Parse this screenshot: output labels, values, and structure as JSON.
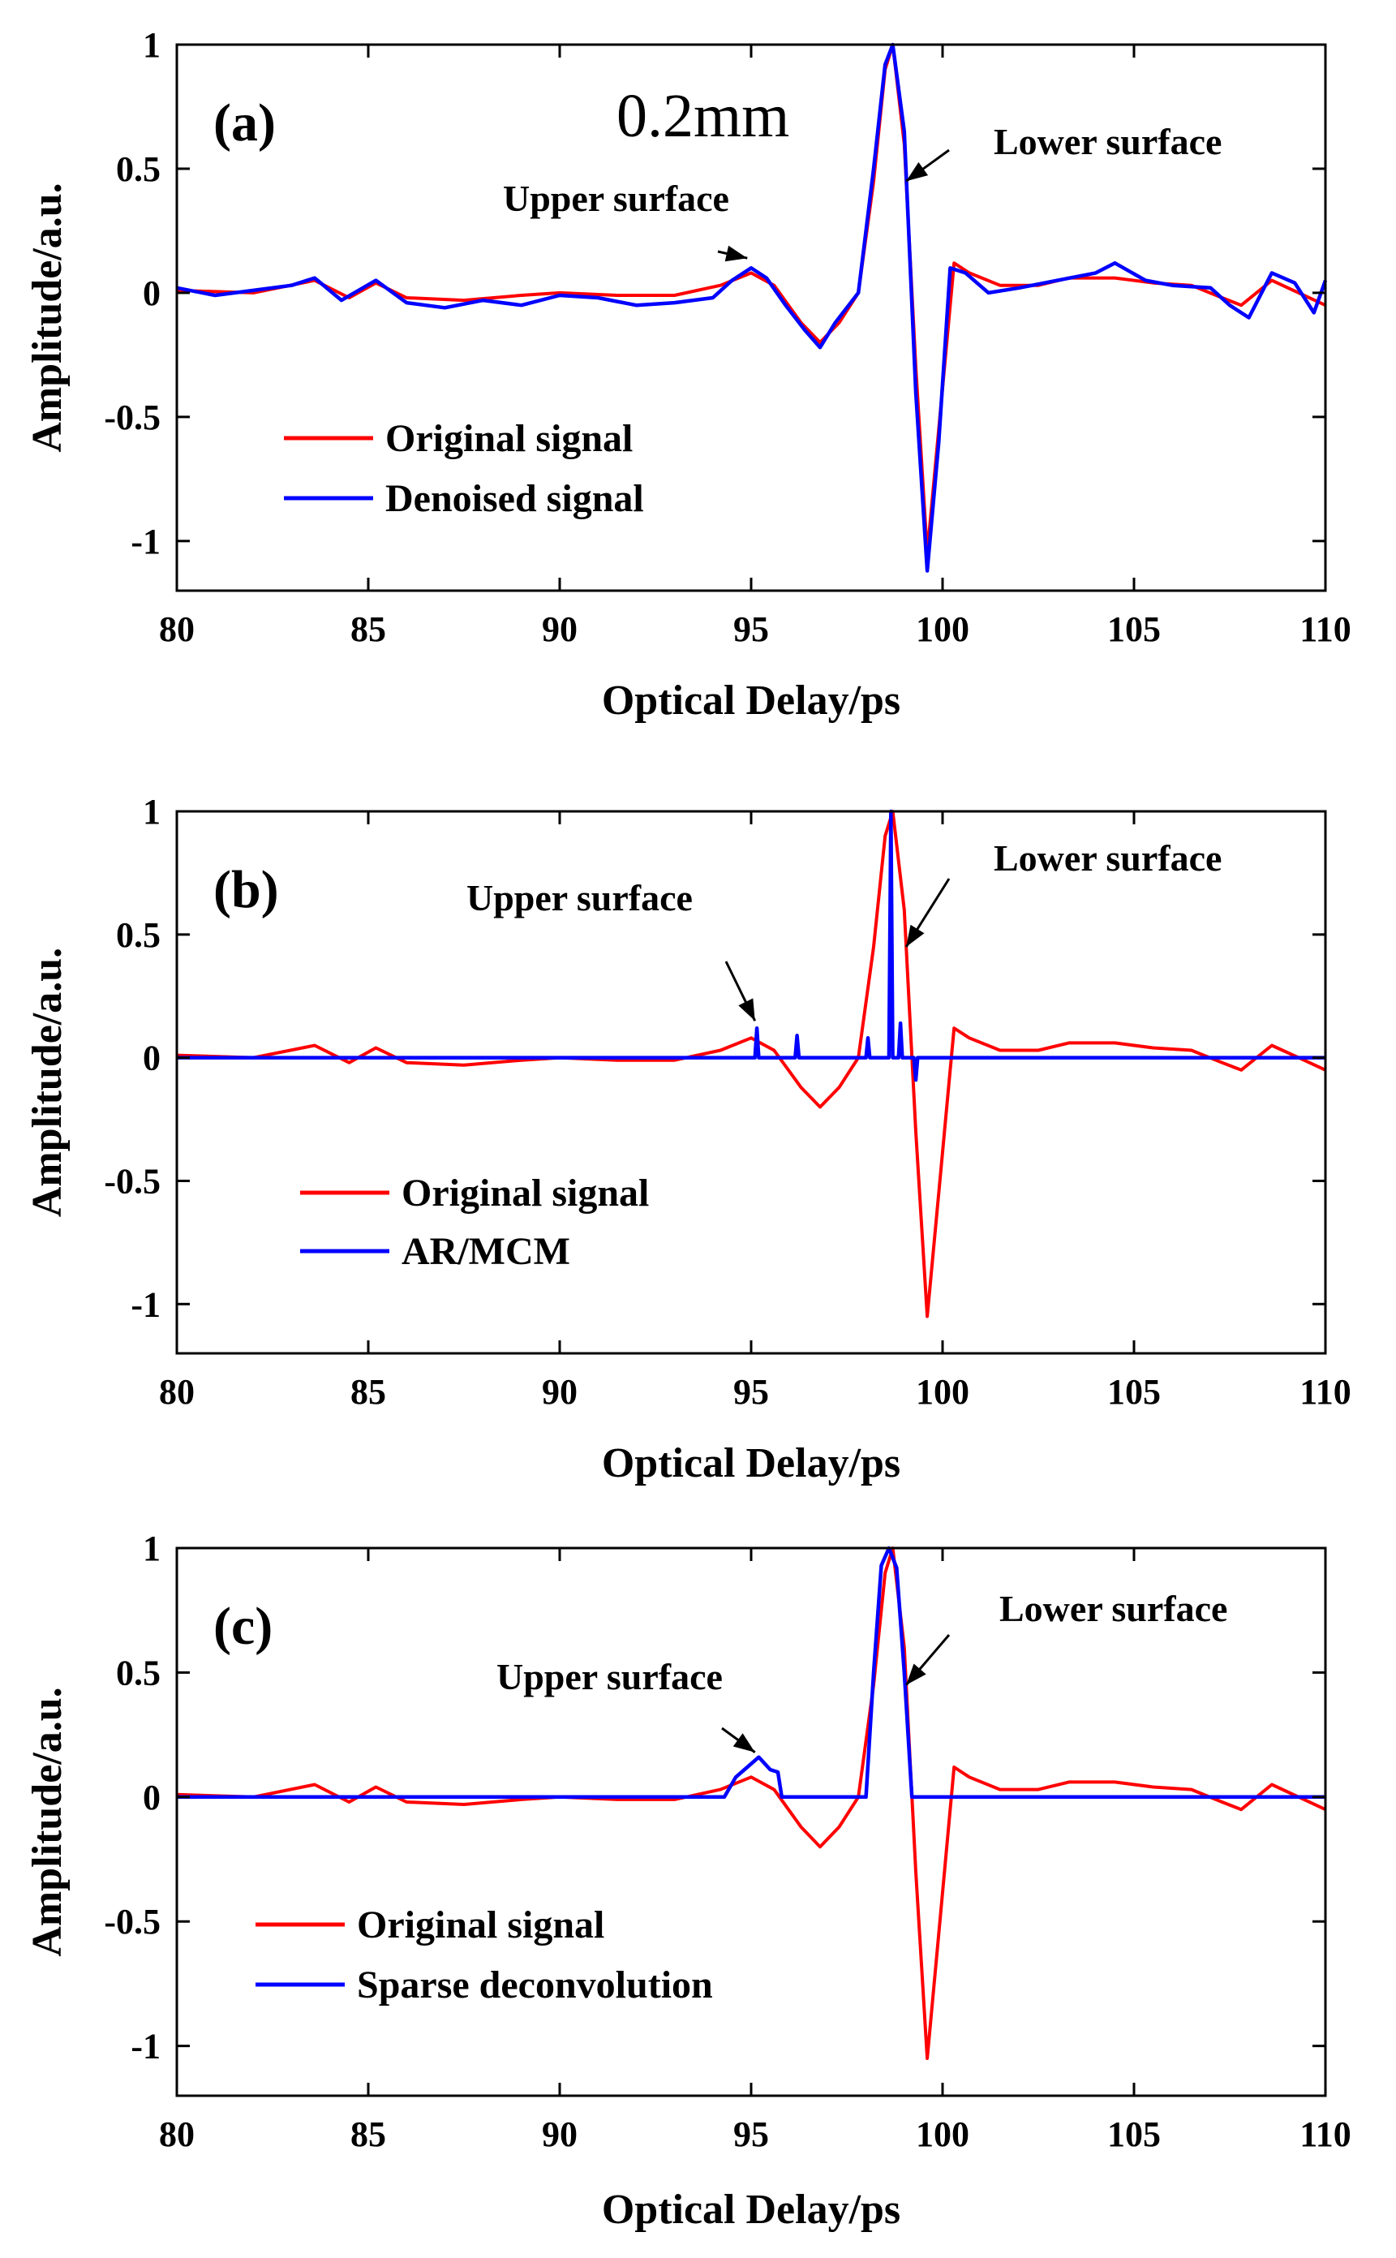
{
  "figure": {
    "thickness_label": "0.2mm"
  },
  "chart_data": [
    {
      "type": "line",
      "panel_label": "(a)",
      "xlabel": "Optical Delay/ps",
      "ylabel": "Amplitude/a.u.",
      "xlim": [
        80,
        110
      ],
      "ylim": [
        -1.2,
        1
      ],
      "xticks": [
        "80",
        "85",
        "90",
        "95",
        "100",
        "105",
        "110"
      ],
      "yticks": [
        "1",
        "0.5",
        "0",
        "-0.5",
        "-1"
      ],
      "annotations": {
        "upper": "Upper surface",
        "lower": "Lower surface"
      },
      "series": [
        {
          "name": "Original signal",
          "color": "#ff0000",
          "x": [
            80,
            82,
            83.6,
            84.5,
            85.2,
            86,
            87.5,
            89,
            90,
            91.5,
            93,
            94.2,
            95,
            95.6,
            96.3,
            96.8,
            97.3,
            97.8,
            98.2,
            98.5,
            98.7,
            99,
            99.3,
            99.6,
            99.9,
            100.3,
            100.7,
            101.5,
            102.5,
            103.3,
            104.5,
            105.5,
            106.5,
            107.3,
            107.8,
            108.6,
            109.3,
            110
          ],
          "y": [
            0.01,
            0.0,
            0.05,
            -0.02,
            0.04,
            -0.02,
            -0.03,
            -0.01,
            0.0,
            -0.01,
            -0.01,
            0.03,
            0.08,
            0.03,
            -0.12,
            -0.2,
            -0.12,
            0.0,
            0.45,
            0.9,
            1.0,
            0.6,
            -0.3,
            -1.05,
            -0.55,
            0.12,
            0.08,
            0.03,
            0.03,
            0.06,
            0.06,
            0.04,
            0.03,
            -0.02,
            -0.05,
            0.05,
            0.0,
            -0.05
          ]
        },
        {
          "name": "Denoised signal",
          "color": "#0000ff",
          "x": [
            80,
            81,
            82,
            83,
            83.6,
            84.3,
            85.2,
            86,
            87,
            88,
            89,
            90,
            91,
            92,
            93,
            94,
            94.5,
            95,
            95.4,
            95.9,
            96.4,
            96.8,
            97.2,
            97.8,
            98.2,
            98.5,
            98.7,
            99,
            99.3,
            99.6,
            99.9,
            100.2,
            100.6,
            101.2,
            102,
            103,
            104,
            104.5,
            105.3,
            106,
            107,
            107.5,
            108,
            108.6,
            109.2,
            109.7,
            110
          ],
          "y": [
            0.02,
            -0.01,
            0.01,
            0.03,
            0.06,
            -0.03,
            0.05,
            -0.04,
            -0.06,
            -0.03,
            -0.05,
            -0.01,
            -0.02,
            -0.05,
            -0.04,
            -0.02,
            0.05,
            0.1,
            0.06,
            -0.05,
            -0.15,
            -0.22,
            -0.12,
            0.0,
            0.5,
            0.92,
            1.0,
            0.65,
            -0.4,
            -1.12,
            -0.6,
            0.1,
            0.08,
            0.0,
            0.02,
            0.05,
            0.08,
            0.12,
            0.05,
            0.03,
            0.02,
            -0.05,
            -0.1,
            0.08,
            0.04,
            -0.08,
            0.05
          ]
        }
      ]
    },
    {
      "type": "line",
      "panel_label": "(b)",
      "xlabel": "Optical Delay/ps",
      "ylabel": "Amplitude/a.u.",
      "xlim": [
        80,
        110
      ],
      "ylim": [
        -1.2,
        1
      ],
      "xticks": [
        "80",
        "85",
        "90",
        "95",
        "100",
        "105",
        "110"
      ],
      "yticks": [
        "1",
        "0.5",
        "0",
        "-0.5",
        "-1"
      ],
      "annotations": {
        "upper": "Upper surface",
        "lower": "Lower surface"
      },
      "series": [
        {
          "name": "Original signal",
          "color": "#ff0000",
          "x": [
            80,
            82,
            83.6,
            84.5,
            85.2,
            86,
            87.5,
            89,
            90,
            91.5,
            93,
            94.2,
            95,
            95.6,
            96.3,
            96.8,
            97.3,
            97.8,
            98.2,
            98.5,
            98.7,
            99,
            99.3,
            99.6,
            99.9,
            100.3,
            100.7,
            101.5,
            102.5,
            103.3,
            104.5,
            105.5,
            106.5,
            107.3,
            107.8,
            108.6,
            109.3,
            110
          ],
          "y": [
            0.01,
            0.0,
            0.05,
            -0.02,
            0.04,
            -0.02,
            -0.03,
            -0.01,
            0.0,
            -0.01,
            -0.01,
            0.03,
            0.08,
            0.03,
            -0.12,
            -0.2,
            -0.12,
            0.0,
            0.45,
            0.9,
            1.0,
            0.6,
            -0.3,
            -1.05,
            -0.55,
            0.12,
            0.08,
            0.03,
            0.03,
            0.06,
            0.06,
            0.04,
            0.03,
            -0.02,
            -0.05,
            0.05,
            0.0,
            -0.05
          ]
        },
        {
          "name": "AR/MCM",
          "color": "#0000ff",
          "x": [
            80,
            95.1,
            95.15,
            95.2,
            96.15,
            96.2,
            96.25,
            98.0,
            98.05,
            98.1,
            98.6,
            98.65,
            98.7,
            98.85,
            98.9,
            98.95,
            99.25,
            99.3,
            99.35,
            110
          ],
          "y": [
            0,
            0,
            0.12,
            0,
            0,
            0.09,
            0,
            0,
            0.08,
            0,
            0,
            1.0,
            0,
            0,
            0.14,
            0,
            0,
            -0.09,
            0,
            0
          ]
        }
      ]
    },
    {
      "type": "line",
      "panel_label": "(c)",
      "xlabel": "Optical Delay/ps",
      "ylabel": "Amplitude/a.u.",
      "xlim": [
        80,
        110
      ],
      "ylim": [
        -1.2,
        1
      ],
      "xticks": [
        "80",
        "85",
        "90",
        "95",
        "100",
        "105",
        "110"
      ],
      "yticks": [
        "1",
        "0.5",
        "0",
        "-0.5",
        "-1"
      ],
      "annotations": {
        "upper": "Upper surface",
        "lower": "Lower surface"
      },
      "series": [
        {
          "name": "Original signal",
          "color": "#ff0000",
          "x": [
            80,
            82,
            83.6,
            84.5,
            85.2,
            86,
            87.5,
            89,
            90,
            91.5,
            93,
            94.2,
            95,
            95.6,
            96.3,
            96.8,
            97.3,
            97.8,
            98.2,
            98.5,
            98.7,
            99,
            99.3,
            99.6,
            99.9,
            100.3,
            100.7,
            101.5,
            102.5,
            103.3,
            104.5,
            105.5,
            106.5,
            107.3,
            107.8,
            108.6,
            109.3,
            110
          ],
          "y": [
            0.01,
            0.0,
            0.05,
            -0.02,
            0.04,
            -0.02,
            -0.03,
            -0.01,
            0.0,
            -0.01,
            -0.01,
            0.03,
            0.08,
            0.03,
            -0.12,
            -0.2,
            -0.12,
            0.0,
            0.45,
            0.9,
            1.0,
            0.6,
            -0.3,
            -1.05,
            -0.55,
            0.12,
            0.08,
            0.03,
            0.03,
            0.06,
            0.06,
            0.04,
            0.03,
            -0.02,
            -0.05,
            0.05,
            0.0,
            -0.05
          ]
        },
        {
          "name": "Sparse deconvolution",
          "color": "#0000ff",
          "x": [
            80,
            94.3,
            94.6,
            94.9,
            95.2,
            95.5,
            95.7,
            95.8,
            98.0,
            98.2,
            98.4,
            98.6,
            98.8,
            99.0,
            99.2,
            110
          ],
          "y": [
            0,
            0,
            0.08,
            0.12,
            0.16,
            0.11,
            0.1,
            0,
            0,
            0.5,
            0.93,
            1.0,
            0.92,
            0.5,
            0,
            0
          ]
        }
      ]
    }
  ]
}
